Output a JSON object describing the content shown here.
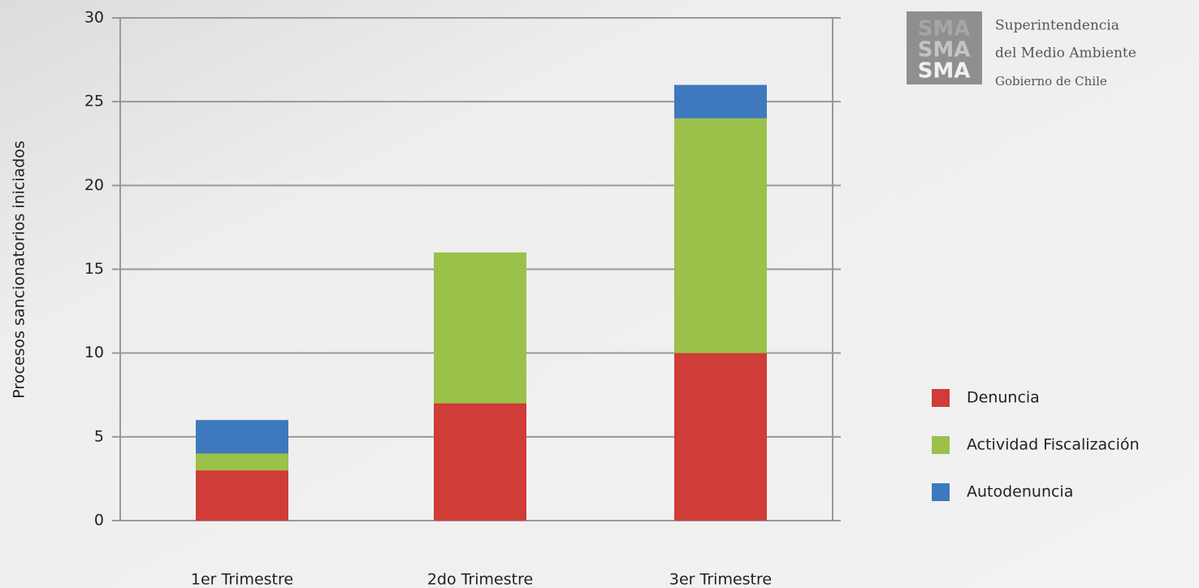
{
  "chart_data": {
    "type": "bar",
    "stacked": true,
    "ylabel": "Procesos sancionatorios iniciados",
    "categories": [
      "1er Trimestre",
      "2do Trimestre",
      "3er Trimestre"
    ],
    "series": [
      {
        "name": "Denuncia",
        "color": "#d03c37",
        "values": [
          3,
          7,
          10
        ]
      },
      {
        "name": "Actividad Fiscalización",
        "color": "#9bc14a",
        "values": [
          1,
          9,
          14
        ]
      },
      {
        "name": "Autodenuncia",
        "color": "#3e79bd",
        "values": [
          2,
          0,
          2
        ]
      }
    ],
    "ylim": [
      0,
      30
    ],
    "yticks": [
      0,
      5,
      10,
      15,
      20,
      25,
      30
    ],
    "grid": true,
    "legend": "right"
  },
  "logo": {
    "mark": [
      "SMA",
      "SMA",
      "SMA"
    ],
    "text": [
      "Superintendencia",
      "del Medio Ambiente",
      "Gobierno de Chile"
    ]
  }
}
